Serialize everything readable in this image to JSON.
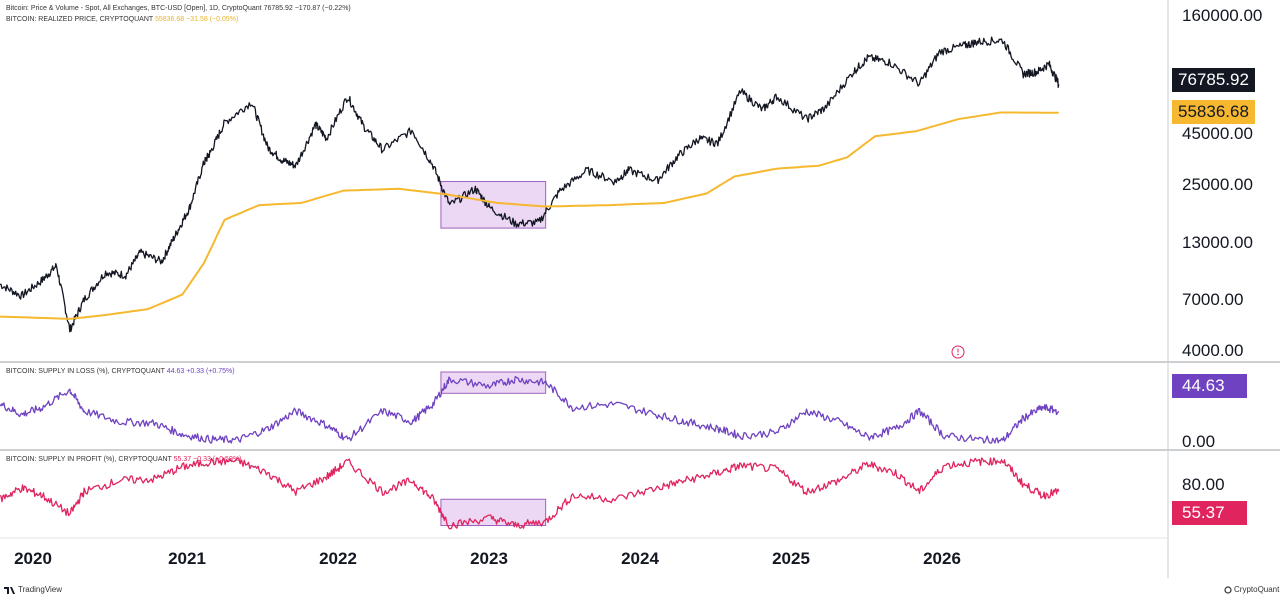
{
  "header": {
    "price_title": "Bitcoin: Price & Volume - Spot, All Exchanges, BTC-USD [Open], 1D, CryptoQuant",
    "price_last": "76785.92",
    "price_change": "−170.87 (−0.22%)",
    "realized_title": "BITCOIN: REALIZED PRICE, CRYPTOQUANT",
    "realized_last": "55836.68",
    "realized_change": "−31.58 (−0.05%)"
  },
  "sub_legends": {
    "loss_title": "BITCOIN: SUPPLY IN LOSS (%), CRYPTOQUANT",
    "loss_last": "44.63",
    "loss_change": "+0.33 (+0.75%)",
    "profit_title": "BITCOIN: SUPPLY IN PROFIT (%), CRYPTOQUANT",
    "profit_last": "55.37",
    "profit_change": "−0.33 (−0.59%)"
  },
  "badges": {
    "price": "76785.92",
    "realized": "55836.68",
    "loss": "44.63",
    "profit": "55.37"
  },
  "colors": {
    "price": "#131722",
    "realized": "#f5b82e",
    "loss": "#6f42c1",
    "profit": "#e0245e",
    "highlight_fill": "#e6c9f0",
    "highlight_stroke": "#a060c0"
  },
  "branding": {
    "left": "TradingView",
    "right": "CryptoQuant"
  },
  "icons": {
    "clock": "clock-icon",
    "tradingview": "tradingview-logo-icon",
    "cryptoquant": "cryptoquant-logo-icon"
  },
  "chart_data": [
    {
      "type": "line",
      "scale": "log",
      "ylim": [
        4000,
        160000
      ],
      "yticks": [
        "160000.00",
        "45000.00",
        "25000.00",
        "13000.00",
        "7000.00",
        "4000.00"
      ],
      "ytick_values": [
        160000,
        45000,
        25000,
        13000,
        7000,
        4000
      ],
      "xlim": [
        "2019-10-15",
        "2026-10-01"
      ],
      "xticks": [
        "2020",
        "2021",
        "2022",
        "2023",
        "2024",
        "2025",
        "2026"
      ],
      "highlight": {
        "x": [
          "2022-06-01",
          "2023-01-15"
        ],
        "y": [
          15500,
          26000
        ]
      },
      "series": [
        {
          "name": "Bitcoin: Price & Volume - Spot, All Exchanges, BTC-USD [Open], 1D, CryptoQuant",
          "color": "#131722",
          "x": [
            "2019-10-15",
            "2019-12-01",
            "2020-01-15",
            "2020-02-15",
            "2020-03-15",
            "2020-04-15",
            "2020-06-01",
            "2020-07-15",
            "2020-08-15",
            "2020-10-01",
            "2020-11-01",
            "2020-12-01",
            "2021-01-01",
            "2021-01-15",
            "2021-02-15",
            "2021-04-15",
            "2021-05-20",
            "2021-06-20",
            "2021-07-20",
            "2021-09-01",
            "2021-09-25",
            "2021-11-10",
            "2021-12-15",
            "2022-01-25",
            "2022-03-30",
            "2022-05-15",
            "2022-06-20",
            "2022-08-15",
            "2022-09-15",
            "2022-11-10",
            "2022-12-31",
            "2023-02-15",
            "2023-04-15",
            "2023-06-15",
            "2023-07-15",
            "2023-09-15",
            "2023-10-30",
            "2023-12-15",
            "2024-01-25",
            "2024-03-14",
            "2024-05-01",
            "2024-06-01",
            "2024-08-05",
            "2024-09-15",
            "2024-11-15",
            "2024-12-17",
            "2025-02-01",
            "2025-04-08",
            "2025-05-22",
            "2025-07-15",
            "2025-08-14",
            "2025-10-06",
            "2025-11-20",
            "2025-12-20",
            "2026-01-15",
            "2026-02-05"
          ],
          "values": [
            8300,
            7300,
            8700,
            10200,
            5000,
            7000,
            9500,
            9200,
            11800,
            10700,
            14500,
            19500,
            32000,
            36000,
            50000,
            63000,
            38000,
            33000,
            31000,
            49000,
            42000,
            67000,
            48000,
            37000,
            46000,
            31000,
            20000,
            24000,
            19500,
            16300,
            16500,
            23500,
            29500,
            26000,
            29500,
            26300,
            34500,
            42000,
            39800,
            71000,
            57800,
            67000,
            52000,
            59000,
            88000,
            103000,
            98000,
            77000,
            110000,
            118000,
            123000,
            125000,
            86000,
            88000,
            96000,
            76785.92
          ]
        },
        {
          "name": "BITCOIN: REALIZED PRICE, CRYPTOQUANT",
          "color": "#f5b82e",
          "x": [
            "2019-10-15",
            "2020-03-15",
            "2020-06-01",
            "2020-09-01",
            "2020-11-15",
            "2021-01-01",
            "2021-02-15",
            "2021-05-01",
            "2021-08-01",
            "2021-11-01",
            "2022-03-01",
            "2022-06-15",
            "2022-10-01",
            "2023-01-15",
            "2023-06-01",
            "2023-10-01",
            "2024-01-01",
            "2024-03-01",
            "2024-06-01",
            "2024-09-01",
            "2024-11-01",
            "2025-01-01",
            "2025-04-01",
            "2025-07-01",
            "2025-10-01",
            "2026-02-05"
          ],
          "values": [
            5800,
            5650,
            5900,
            6300,
            7400,
            10500,
            17000,
            20000,
            20500,
            23500,
            24000,
            22500,
            20500,
            19700,
            20000,
            20500,
            22800,
            27500,
            30000,
            31000,
            34000,
            43000,
            45500,
            52000,
            56000,
            55836.68
          ]
        }
      ]
    },
    {
      "type": "line",
      "ylim": [
        0,
        100
      ],
      "yticks": [
        "0.00"
      ],
      "ytick_values": [
        0
      ],
      "xlim": [
        "2019-10-15",
        "2026-10-01"
      ],
      "highlight": {
        "x": [
          "2022-06-01",
          "2023-01-15"
        ],
        "y": [
          70,
          100
        ]
      },
      "series": [
        {
          "name": "BITCOIN: SUPPLY IN LOSS (%), CRYPTOQUANT",
          "color": "#6f42c1",
          "x": [
            "2019-10-15",
            "2019-12-01",
            "2020-01-15",
            "2020-03-15",
            "2020-04-15",
            "2020-07-01",
            "2020-09-15",
            "2020-11-15",
            "2021-01-15",
            "2021-03-15",
            "2021-05-20",
            "2021-07-20",
            "2021-09-25",
            "2021-11-10",
            "2022-01-25",
            "2022-03-30",
            "2022-05-15",
            "2022-06-20",
            "2022-09-15",
            "2022-11-10",
            "2023-01-15",
            "2023-03-15",
            "2023-06-15",
            "2023-09-15",
            "2023-11-15",
            "2024-01-25",
            "2024-03-15",
            "2024-06-01",
            "2024-08-05",
            "2024-10-15",
            "2024-12-17",
            "2025-02-15",
            "2025-04-08",
            "2025-06-01",
            "2025-08-14",
            "2025-10-06",
            "2025-11-20",
            "2026-01-01",
            "2026-02-05"
          ],
          "values": [
            55,
            40,
            50,
            75,
            45,
            30,
            28,
            12,
            5,
            4,
            20,
            45,
            25,
            5,
            45,
            30,
            55,
            90,
            80,
            90,
            85,
            50,
            55,
            40,
            30,
            20,
            10,
            15,
            45,
            30,
            8,
            20,
            45,
            10,
            5,
            3,
            35,
            50,
            44.63
          ]
        }
      ]
    },
    {
      "type": "line",
      "ylim": [
        0,
        100
      ],
      "yticks": [
        "80.00"
      ],
      "ytick_values": [
        80
      ],
      "xlim": [
        "2019-10-15",
        "2026-10-01"
      ],
      "highlight": {
        "x": [
          "2022-06-01",
          "2023-01-15"
        ],
        "y": [
          10,
          45
        ]
      },
      "series": [
        {
          "name": "BITCOIN: SUPPLY IN PROFIT (%), CRYPTOQUANT",
          "color": "#e0245e",
          "x": [
            "2019-10-15",
            "2019-12-01",
            "2020-01-15",
            "2020-03-15",
            "2020-04-15",
            "2020-07-01",
            "2020-09-15",
            "2020-11-15",
            "2021-01-15",
            "2021-03-15",
            "2021-05-20",
            "2021-07-20",
            "2021-09-25",
            "2021-11-10",
            "2022-01-25",
            "2022-03-30",
            "2022-05-15",
            "2022-06-20",
            "2022-09-15",
            "2022-11-10",
            "2023-01-15",
            "2023-03-15",
            "2023-06-15",
            "2023-09-15",
            "2023-11-15",
            "2024-01-25",
            "2024-03-15",
            "2024-06-01",
            "2024-08-05",
            "2024-10-15",
            "2024-12-17",
            "2025-02-15",
            "2025-04-08",
            "2025-06-01",
            "2025-08-14",
            "2025-10-06",
            "2025-11-20",
            "2026-01-01",
            "2026-02-05"
          ],
          "values": [
            45,
            60,
            50,
            25,
            55,
            70,
            72,
            88,
            95,
            96,
            80,
            55,
            75,
            95,
            55,
            70,
            45,
            10,
            20,
            10,
            15,
            50,
            45,
            60,
            70,
            80,
            90,
            85,
            55,
            70,
            92,
            80,
            55,
            90,
            95,
            97,
            65,
            50,
            55.37
          ]
        }
      ]
    }
  ]
}
